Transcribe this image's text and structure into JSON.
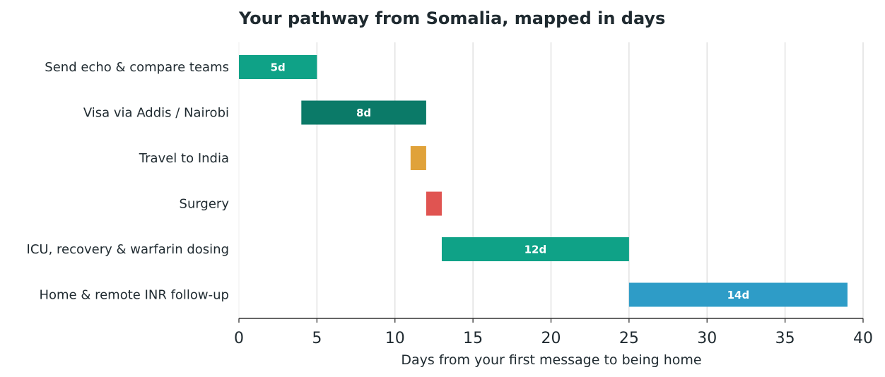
{
  "chart_data": {
    "type": "gantt",
    "title": "Your pathway from Somalia, mapped in days",
    "xlabel": "Days from your first message to being home",
    "ylabel": "",
    "xlim": [
      0,
      40
    ],
    "xticks": [
      0,
      5,
      10,
      15,
      20,
      25,
      30,
      35,
      40
    ],
    "grid": "vertical",
    "tasks": [
      {
        "name": "Send echo & compare teams",
        "start": 0,
        "end": 5,
        "label": "5d",
        "color": "#0fa287"
      },
      {
        "name": "Visa via Addis / Nairobi",
        "start": 4,
        "end": 12,
        "label": "8d",
        "color": "#0b7a68"
      },
      {
        "name": "Travel to India",
        "start": 11,
        "end": 12,
        "label": "",
        "color": "#e0a23a"
      },
      {
        "name": "Surgery",
        "start": 12,
        "end": 13,
        "label": "",
        "color": "#e05451"
      },
      {
        "name": "ICU, recovery & warfarin dosing",
        "start": 13,
        "end": 25,
        "label": "12d",
        "color": "#0fa287"
      },
      {
        "name": "Home & remote INR follow-up",
        "start": 25,
        "end": 39,
        "label": "14d",
        "color": "#2e9cc7"
      }
    ]
  }
}
